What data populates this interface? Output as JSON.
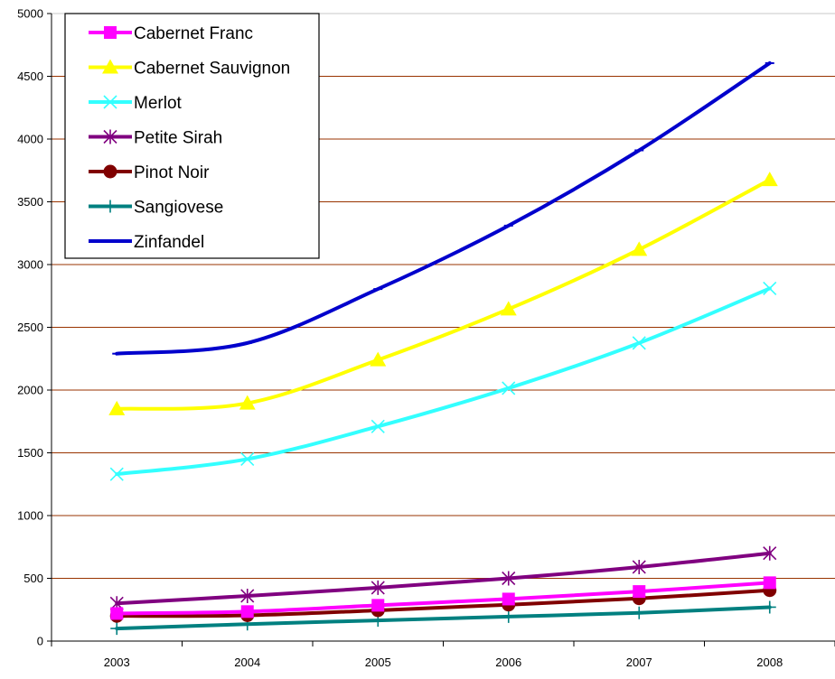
{
  "chart_data": {
    "type": "line",
    "title": "",
    "xlabel": "",
    "ylabel": "",
    "categories": [
      "2003",
      "2004",
      "2005",
      "2006",
      "2007",
      "2008"
    ],
    "ylim": [
      0,
      5000
    ],
    "yticks": [
      0,
      500,
      1000,
      1500,
      2000,
      2500,
      3000,
      3500,
      4000,
      4500,
      5000
    ],
    "grid": "horizontal",
    "legend_position": "top-left",
    "series": [
      {
        "name": "Cabernet Franc",
        "color": "#FF00FF",
        "marker": "square",
        "values": [
          220,
          235,
          285,
          335,
          395,
          465
        ]
      },
      {
        "name": "Cabernet Sauvignon",
        "color": "#FFFF00",
        "marker": "triangle",
        "values": [
          1850,
          1895,
          2240,
          2645,
          3120,
          3675
        ]
      },
      {
        "name": "Merlot",
        "color": "#33FFFF",
        "marker": "x",
        "values": [
          1330,
          1450,
          1710,
          2015,
          2375,
          2810
        ]
      },
      {
        "name": "Petite Sirah",
        "color": "#800080",
        "marker": "star",
        "values": [
          300,
          360,
          425,
          500,
          590,
          700
        ]
      },
      {
        "name": "Pinot Noir",
        "color": "#800000",
        "marker": "circle",
        "values": [
          200,
          205,
          245,
          290,
          340,
          405
        ]
      },
      {
        "name": "Sangiovese",
        "color": "#008080",
        "marker": "plus",
        "values": [
          100,
          135,
          165,
          195,
          225,
          270
        ]
      },
      {
        "name": "Zinfandel",
        "color": "#0000CC",
        "marker": "dash",
        "values": [
          2290,
          2375,
          2805,
          3310,
          3910,
          4605
        ]
      }
    ]
  }
}
